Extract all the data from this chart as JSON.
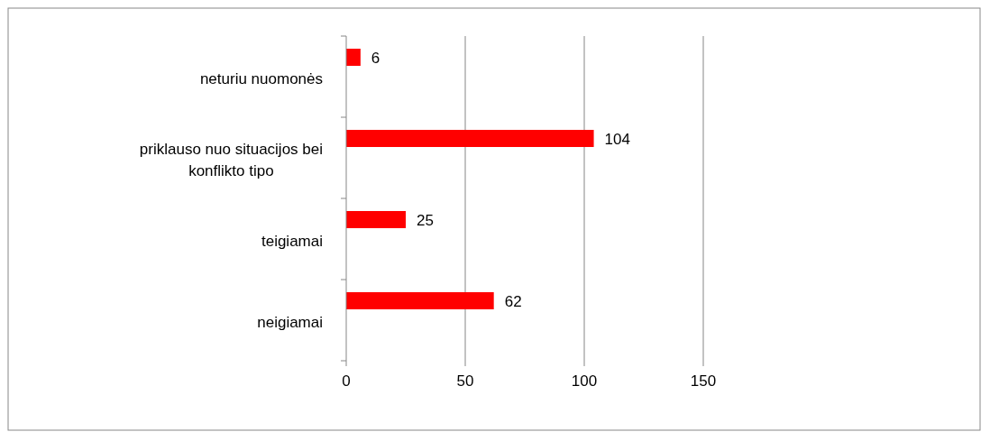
{
  "chart_data": {
    "type": "bar",
    "orientation": "horizontal",
    "categories": [
      "neturiu nuomonės",
      "priklauso nuo situacijos bei konflikto tipo",
      "teigiamai",
      "neigiamai"
    ],
    "values": [
      6,
      104,
      25,
      62
    ],
    "color": "#ff0000",
    "xlim": [
      0,
      150
    ],
    "xticks": [
      0,
      50,
      100,
      150
    ],
    "grid": "x",
    "data_labels": true
  }
}
